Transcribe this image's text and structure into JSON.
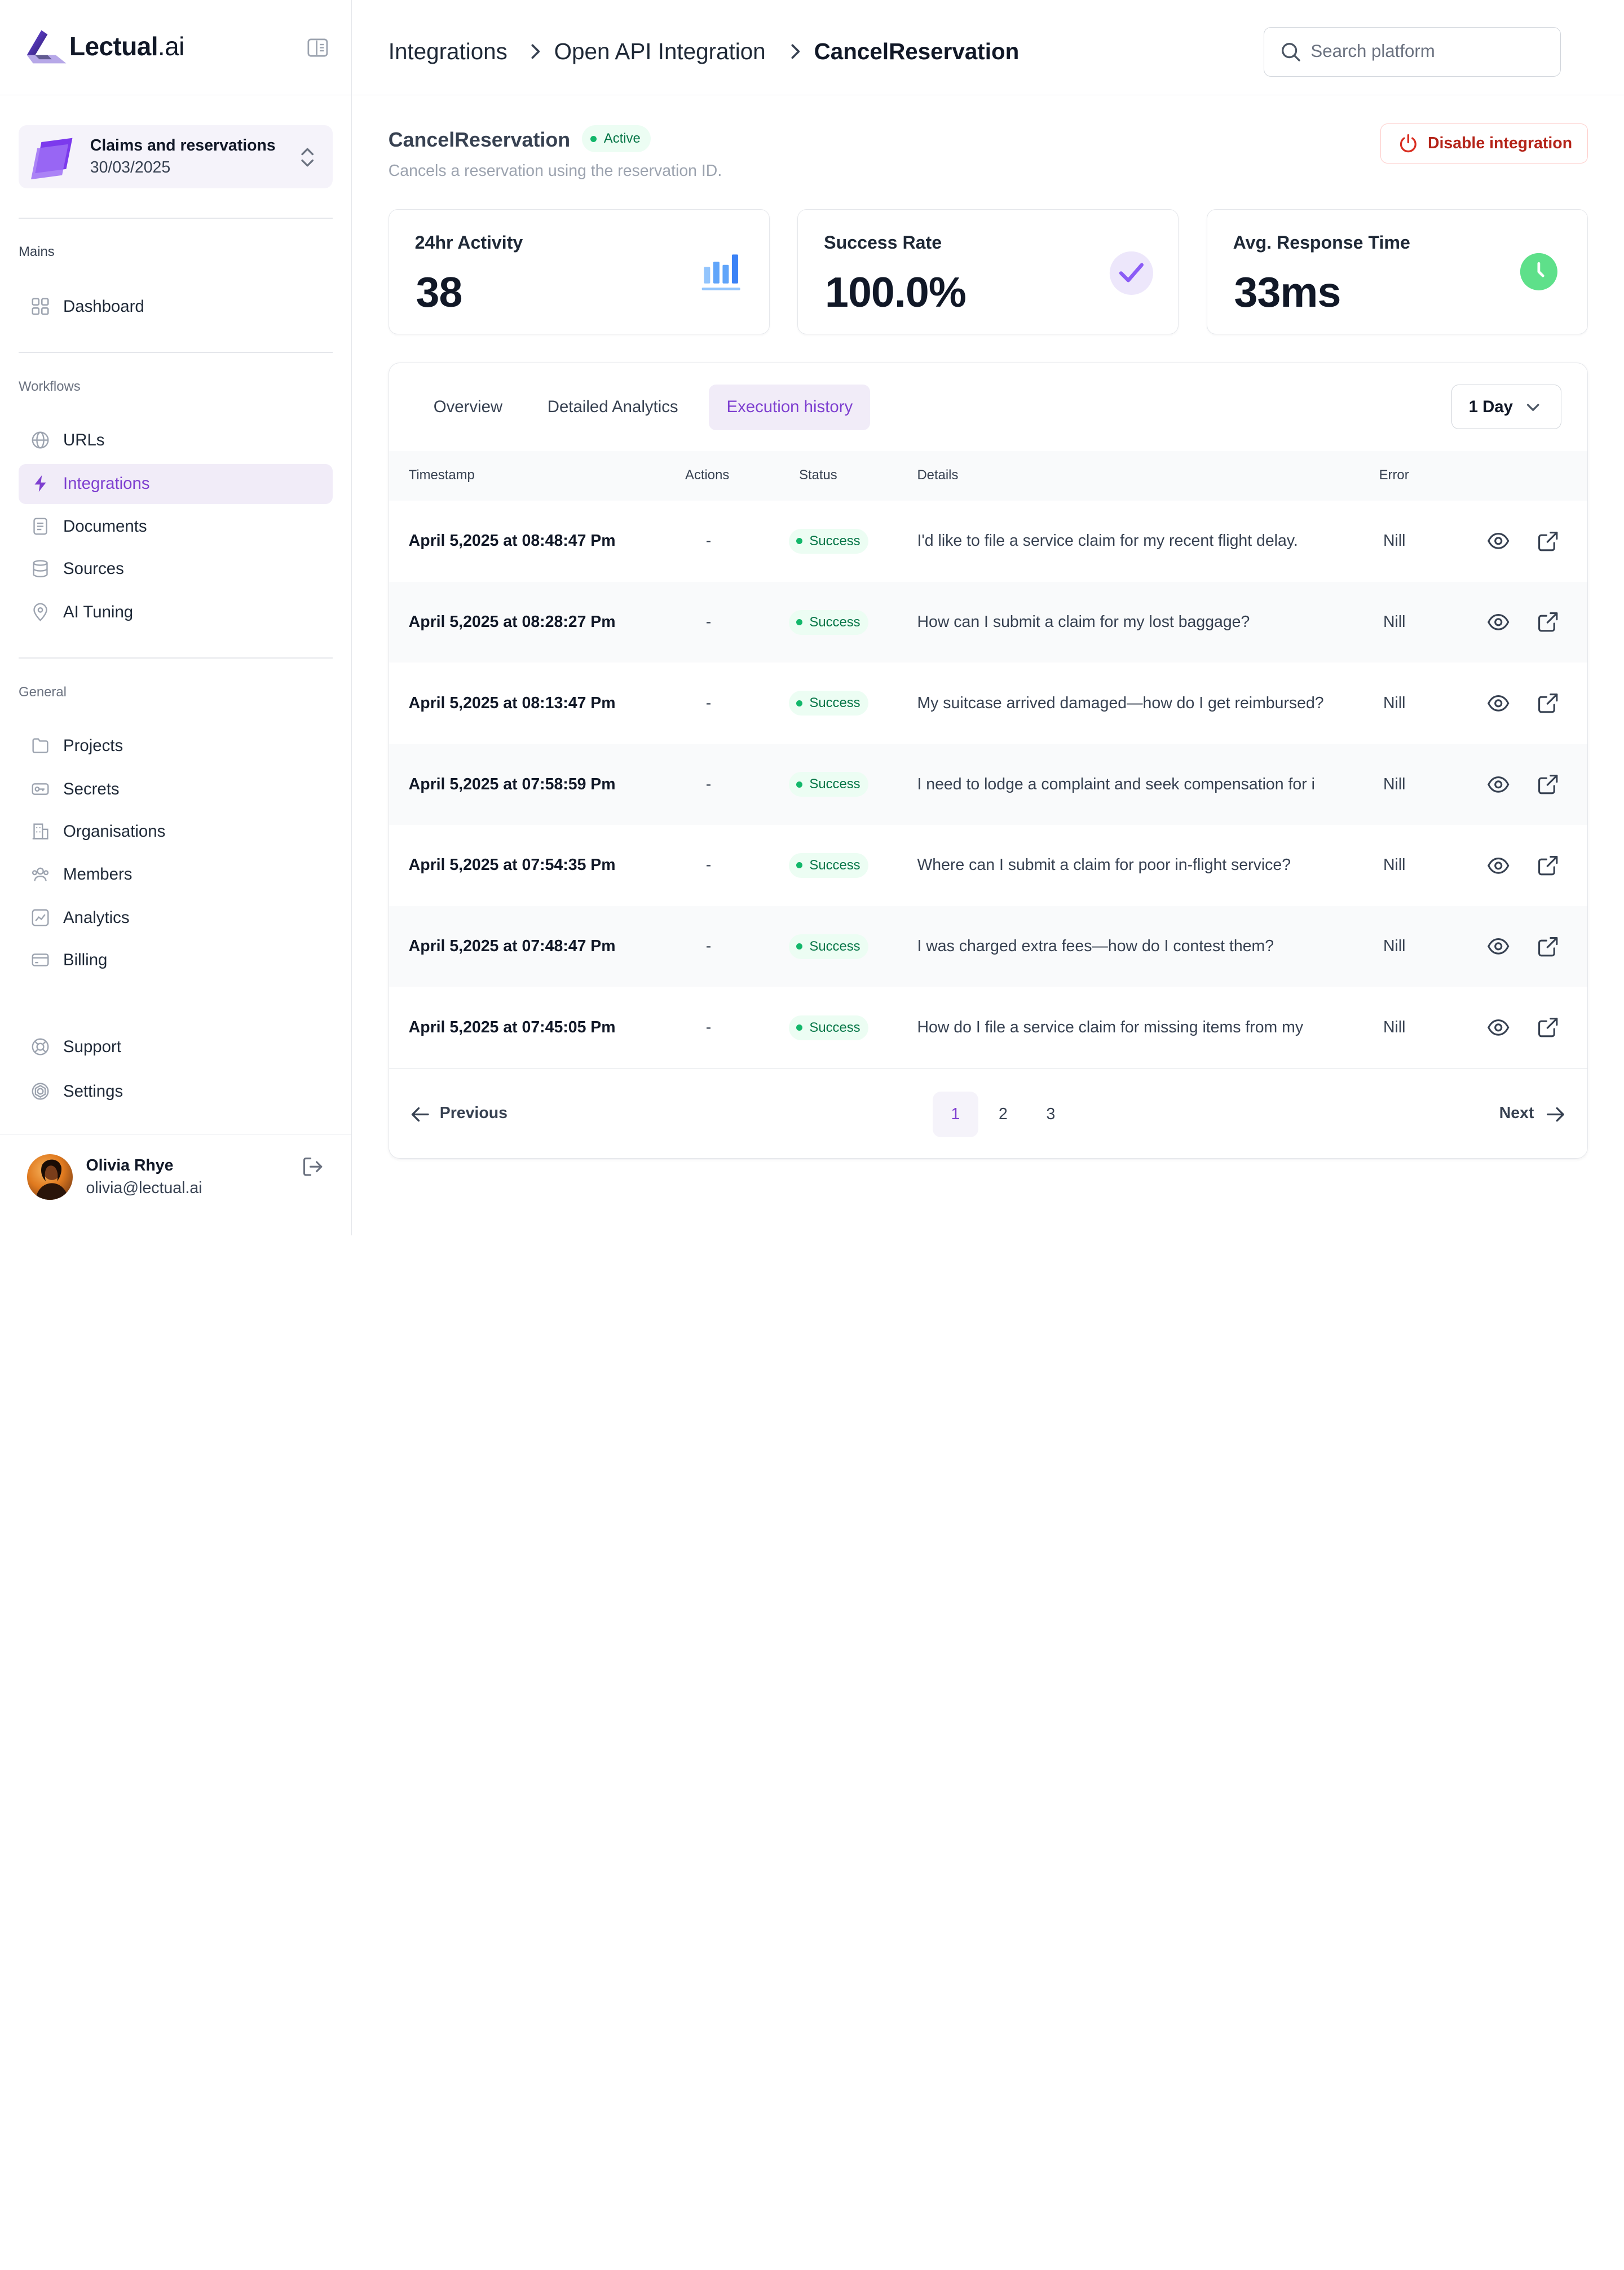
{
  "brand": {
    "name": "Lectual",
    "suffix": ".ai"
  },
  "workspace": {
    "name": "Claims and reservations",
    "date": "30/03/2025"
  },
  "nav": {
    "mains_label": "Mains",
    "mains": [
      {
        "label": "Dashboard",
        "icon": "grid-icon"
      }
    ],
    "workflows_label": "Workflows",
    "workflows": [
      {
        "label": "URLs",
        "icon": "globe-icon"
      },
      {
        "label": "Integrations",
        "icon": "lightning-icon",
        "active": true
      },
      {
        "label": "Documents",
        "icon": "document-icon"
      },
      {
        "label": "Sources",
        "icon": "database-icon"
      },
      {
        "label": "AI Tuning",
        "icon": "tuning-pin-icon"
      }
    ],
    "general_label": "General",
    "general": [
      {
        "label": "Projects",
        "icon": "folder-icon"
      },
      {
        "label": "Secrets",
        "icon": "key-icon"
      },
      {
        "label": "Organisations",
        "icon": "building-icon"
      },
      {
        "label": "Members",
        "icon": "users-icon"
      },
      {
        "label": "Analytics",
        "icon": "chart-icon"
      },
      {
        "label": "Billing",
        "icon": "credit-card-icon"
      }
    ],
    "bottom": [
      {
        "label": "Support",
        "icon": "lifebuoy-icon"
      },
      {
        "label": "Settings",
        "icon": "gear-icon"
      }
    ]
  },
  "user": {
    "name": "Olivia Rhye",
    "email": "olivia@lectual.ai"
  },
  "breadcrumb": [
    "Integrations",
    "Open API Integration",
    "CancelReservation"
  ],
  "search": {
    "placeholder": "Search platform"
  },
  "integration": {
    "name": "CancelReservation",
    "status": "Active",
    "description": "Cancels a reservation using the reservation ID.",
    "disable_label": "Disable integration"
  },
  "stats": [
    {
      "title": "24hr Activity",
      "value": "38",
      "icon": "bar-chart-icon",
      "color": "#60a5fa"
    },
    {
      "title": "Success Rate",
      "value": "100.0%",
      "icon": "check-icon",
      "color": "#8b5cf6"
    },
    {
      "title": "Avg. Response Time",
      "value": "33ms",
      "icon": "clock-icon",
      "color": "#4ade80"
    }
  ],
  "tabs": [
    "Overview",
    "Detailed Analytics",
    "Execution history"
  ],
  "selected_tab": "Execution history",
  "range": "1 Day",
  "table": {
    "columns": [
      "Timestamp",
      "Actions",
      "Status",
      "Details",
      "Error"
    ],
    "rows": [
      {
        "timestamp": "April 5,2025 at 08:48:47 Pm",
        "actions": "-",
        "status": "Success",
        "details": "I'd like to file a service claim for my recent flight delay.",
        "error": "Nill"
      },
      {
        "timestamp": "April 5,2025 at 08:28:27 Pm",
        "actions": "-",
        "status": "Success",
        "details": "How can I submit a claim for my lost baggage?",
        "error": "Nill"
      },
      {
        "timestamp": "April 5,2025 at 08:13:47 Pm",
        "actions": "-",
        "status": "Success",
        "details": "My suitcase arrived damaged—how do I get reimbursed?",
        "error": "Nill"
      },
      {
        "timestamp": "April 5,2025 at 07:58:59 Pm",
        "actions": "-",
        "status": "Success",
        "details": "I need to lodge a complaint and seek compensation for i",
        "error": "Nill"
      },
      {
        "timestamp": "April 5,2025 at 07:54:35 Pm",
        "actions": "-",
        "status": "Success",
        "details": "Where can I submit a claim for poor in-flight service?",
        "error": "Nill"
      },
      {
        "timestamp": "April 5,2025 at 07:48:47 Pm",
        "actions": "-",
        "status": "Success",
        "details": "I was charged extra fees—how do I contest them?",
        "error": "Nill"
      },
      {
        "timestamp": "April 5,2025 at 07:45:05 Pm",
        "actions": "-",
        "status": "Success",
        "details": "How do I file a service claim for missing items from my",
        "error": "Nill"
      }
    ]
  },
  "pagination": {
    "previous": "Previous",
    "next": "Next",
    "pages": [
      "1",
      "2",
      "3"
    ],
    "current": "1"
  },
  "colors": {
    "accent": "#7e3fd0",
    "success": "#12b76a",
    "danger": "#d92d20"
  }
}
